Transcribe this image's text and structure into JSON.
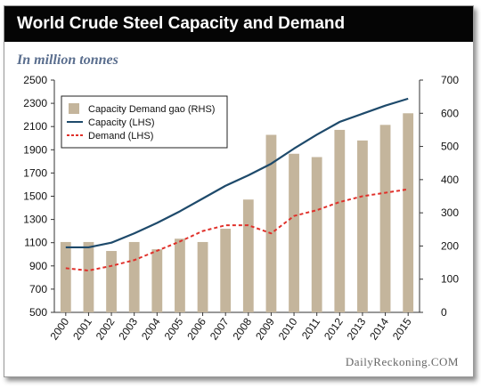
{
  "header": {
    "title": "World Crude Steel Capacity and Demand",
    "subtitle": "In million tonnes"
  },
  "footer": {
    "credit": "DailyReckoning.COM"
  },
  "colors": {
    "header_bg": "#050505",
    "bar": "#c4b59c",
    "capacity_line": "#1e4a6b",
    "demand_line": "#e0302a",
    "subtitle": "#5a6e8e"
  },
  "chart_data": {
    "type": "bar+line",
    "x": [
      "2000",
      "2001",
      "2002",
      "2003",
      "2004",
      "2005",
      "2006",
      "2007",
      "2008",
      "2009",
      "2010",
      "2011",
      "2012",
      "2013",
      "2014",
      "2015"
    ],
    "left_axis": {
      "ylim": [
        500,
        2500
      ],
      "ticks": [
        500,
        700,
        900,
        1100,
        1300,
        1500,
        1700,
        1900,
        2100,
        2300,
        2500
      ]
    },
    "right_axis": {
      "ylim": [
        0,
        700
      ],
      "ticks": [
        0,
        100,
        200,
        300,
        400,
        500,
        600,
        700
      ]
    },
    "grid": false,
    "legend_position": "top-left",
    "series": [
      {
        "name": "Capacity Demand gao (RHS)",
        "kind": "bar",
        "axis": "right",
        "values": [
          212,
          212,
          185,
          212,
          190,
          222,
          212,
          252,
          340,
          535,
          478,
          468,
          550,
          518,
          565,
          600
        ]
      },
      {
        "name": "Capacity (LHS)",
        "kind": "line",
        "style": "solid",
        "axis": "left",
        "values": [
          1060,
          1060,
          1100,
          1180,
          1270,
          1370,
          1480,
          1590,
          1680,
          1780,
          1910,
          2030,
          2140,
          2210,
          2280,
          2340
        ]
      },
      {
        "name": "Demand (LHS)",
        "kind": "line",
        "style": "dashed",
        "axis": "left",
        "values": [
          880,
          860,
          900,
          950,
          1030,
          1110,
          1200,
          1250,
          1250,
          1180,
          1330,
          1380,
          1450,
          1500,
          1530,
          1560
        ]
      }
    ]
  }
}
